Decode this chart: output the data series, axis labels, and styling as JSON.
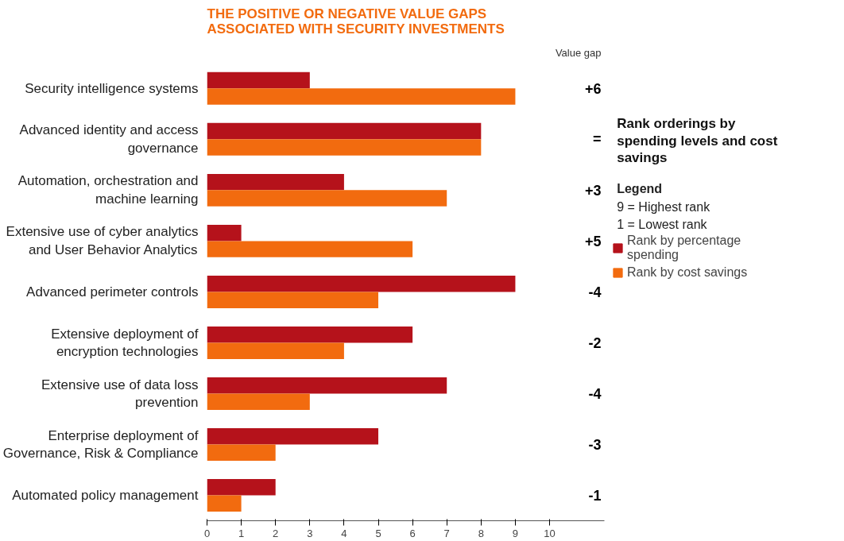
{
  "chart_data": {
    "type": "bar",
    "orientation": "horizontal",
    "title": "THE POSITIVE OR NEGATIVE VALUE GAPS ASSOCIATED WITH SECURITY INVESTMENTS",
    "categories": [
      "Security intelligence systems",
      "Advanced identity and access governance",
      "Automation, orchestration and machine learning",
      "Extensive use of cyber analytics and User Behavior Analytics",
      "Advanced perimeter controls",
      "Extensive deployment of encryption technologies",
      "Extensive use of data loss prevention",
      "Enterprise deployment of Governance, Risk & Compliance",
      "Automated policy management"
    ],
    "series": [
      {
        "name": "Rank by percentage spending",
        "color": "#b5121b",
        "values": [
          3,
          8,
          4,
          1,
          9,
          6,
          7,
          5,
          2
        ]
      },
      {
        "name": "Rank by cost savings",
        "color": "#f26b0f",
        "values": [
          9,
          8,
          7,
          6,
          5,
          4,
          3,
          2,
          1
        ]
      }
    ],
    "xlim": [
      0,
      11.6
    ],
    "xticks": [
      0,
      1,
      2,
      3,
      4,
      5,
      6,
      7,
      8,
      9,
      10
    ],
    "legend": "right",
    "legend_title": "Rank orderings by spending levels and cost savings",
    "annotations": [
      "Value gap",
      "Legend",
      "9 = Highest rank",
      "1 = Lowest rank",
      "+6",
      "=",
      "+3",
      "+5",
      "-4",
      "-2",
      "-4",
      "-3",
      "-1"
    ]
  }
}
